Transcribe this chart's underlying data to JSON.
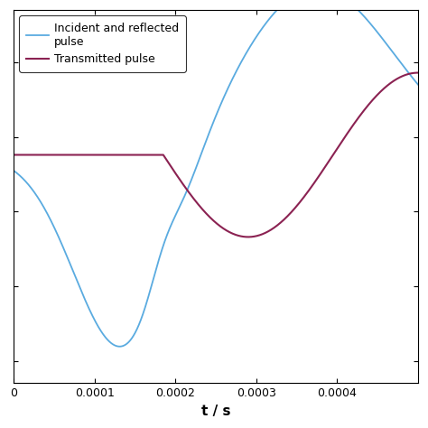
{
  "title": "",
  "xlabel": "t / s",
  "ylabel": "",
  "blue_label": "Incident and reflected\npulse",
  "red_label": "Transmitted pulse",
  "blue_color": "#5aabe0",
  "red_color": "#8b2252",
  "xlim": [
    0,
    0.0005
  ],
  "xticks": [
    0,
    0.0001,
    0.0002,
    0.0003,
    0.0004
  ],
  "figsize": [
    4.74,
    4.74
  ],
  "dpi": 100,
  "ylim": [
    -1.15,
    1.35
  ]
}
